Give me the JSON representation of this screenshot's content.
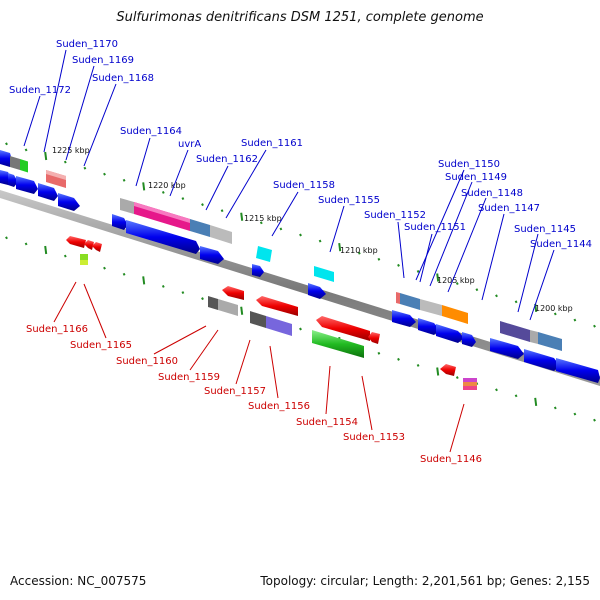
{
  "title": "Sulfurimonas denitrificans DSM 1251, complete genome",
  "accession": "Accession: NC_007575",
  "summary": "Topology: circular; Length: 2,201,561 bp; Genes: 2,155",
  "colors": {
    "forward_label": "#0000cc",
    "reverse_label": "#cc0000",
    "backbone": "#808080",
    "tick": "#228b22"
  },
  "kbp_labels": [
    "1225 kbp",
    "1220 kbp",
    "1215 kbp",
    "1210 kbp",
    "1205 kbp",
    "1200 kbp"
  ],
  "forward_labels": [
    "Suden_1170",
    "Suden_1169",
    "Suden_1168",
    "Suden_1172",
    "Suden_1164",
    "uvrA",
    "Suden_1161",
    "Suden_1162",
    "Suden_1158",
    "Suden_1155",
    "Suden_1150",
    "Suden_1149",
    "Suden_1148",
    "Suden_1152",
    "Suden_1147",
    "Suden_1151",
    "Suden_1145",
    "Suden_1144"
  ],
  "reverse_labels": [
    "Suden_1166",
    "Suden_1165",
    "Suden_1160",
    "Suden_1159",
    "Suden_1157",
    "Suden_1156",
    "Suden_1154",
    "Suden_1153",
    "Suden_1146"
  ]
}
